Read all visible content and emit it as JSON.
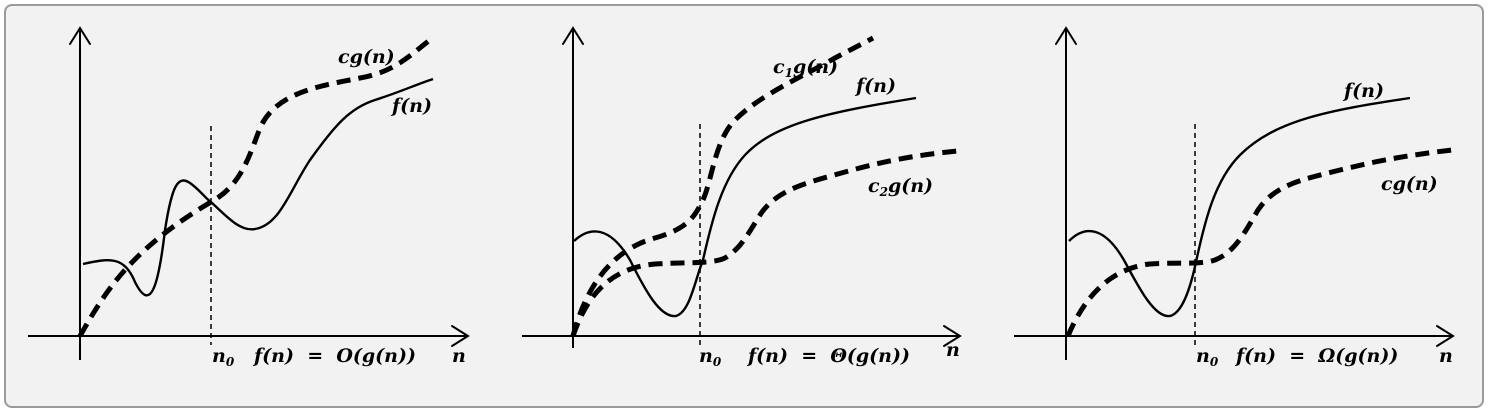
{
  "panels": [
    {
      "id": "big-o",
      "n0_label": "n",
      "n0_sub": "0",
      "relation": "f(n)  =  O(g(n))",
      "axis_label": "n",
      "f_label": "f(n)",
      "g_labels": [
        {
          "c": "c",
          "sub": "",
          "rest": "g(n)"
        }
      ]
    },
    {
      "id": "big-theta",
      "n0_label": "n",
      "n0_sub": "0",
      "relation": "f(n)  =  Θ(g(n))",
      "axis_label": "n",
      "f_label": "f(n)",
      "g_labels": [
        {
          "c": "c",
          "sub": "1",
          "rest": "g(n)"
        },
        {
          "c": "c",
          "sub": "2",
          "rest": "g(n)"
        }
      ]
    },
    {
      "id": "big-omega",
      "n0_label": "n",
      "n0_sub": "0",
      "relation": "f(n)  =  Ω(g(n))",
      "axis_label": "n",
      "f_label": "f(n)",
      "g_labels": [
        {
          "c": "c",
          "sub": "",
          "rest": "g(n)"
        }
      ]
    }
  ]
}
